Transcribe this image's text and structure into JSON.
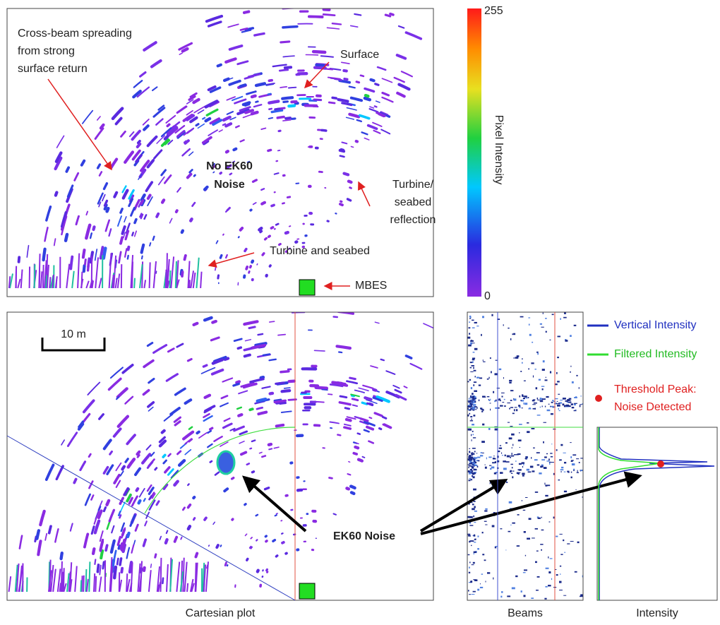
{
  "top_panel": {
    "cross_beam": [
      "Cross-beam spreading",
      "from strong",
      "surface return"
    ],
    "surface": "Surface",
    "no_noise": [
      "No EK60",
      "Noise"
    ],
    "turbine_reflection": [
      "Turbine/",
      "seabed",
      "reflection"
    ],
    "turbine_seabed": "Turbine and seabed",
    "mbes": "MBES"
  },
  "colorbar": {
    "max": 255,
    "min": 0,
    "label": "Pixel Intensity"
  },
  "bottom_panel": {
    "scale_bar": "10 m",
    "noise_label": "EK60 Noise"
  },
  "legend": {
    "vertical": "Vertical Intensity",
    "filtered": "Filtered Intensity",
    "threshold": [
      "Threshold Peak:",
      "Noise Detected"
    ]
  },
  "captions": {
    "cartesian": "Cartesian plot",
    "beams": "Beams",
    "intensity": "Intensity"
  }
}
